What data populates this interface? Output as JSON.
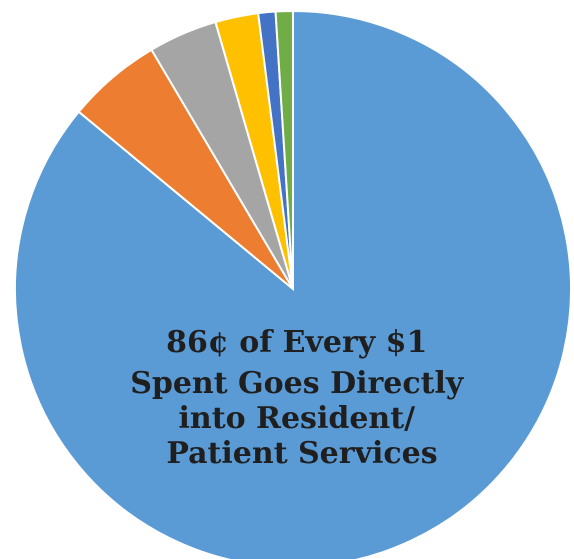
{
  "chart_data": {
    "type": "pie",
    "start_angle_deg": 0,
    "direction": "clockwise",
    "slices": [
      {
        "value": 86,
        "color": "#5b9bd5"
      },
      {
        "value": 5.5,
        "color": "#ed7d31"
      },
      {
        "value": 4,
        "color": "#a5a5a5"
      },
      {
        "value": 2.5,
        "color": "#ffc000"
      },
      {
        "value": 1,
        "color": "#4472c4"
      },
      {
        "value": 1,
        "color": "#70ad47"
      }
    ],
    "annotation_lines": [
      "86¢ of Every $1",
      "Spent Goes Directly",
      "into Resident/",
      "Patient Services"
    ]
  }
}
